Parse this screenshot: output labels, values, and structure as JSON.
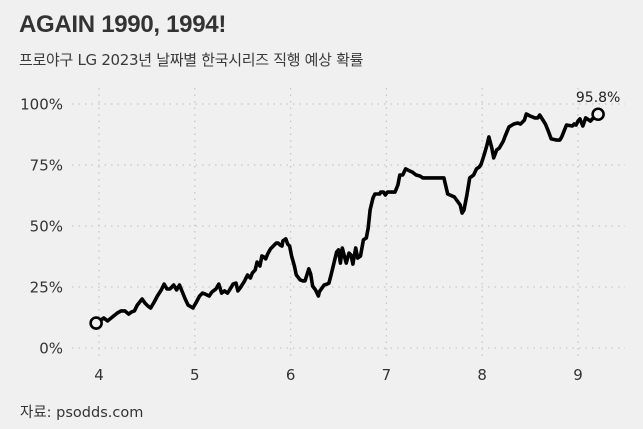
{
  "header": {
    "title": "AGAIN 1990, 1994!",
    "subtitle": "프로야구 LG 2023년 날짜별 한국시리즈 직행 예상 확률"
  },
  "footer": {
    "source": "자료: psodds.com"
  },
  "colors": {
    "background": "#f0f0f0",
    "line": "#000000",
    "grid": "#c8c8c8",
    "text": "#333333"
  },
  "chart_data": {
    "type": "line",
    "title": "AGAIN 1990, 1994!",
    "subtitle": "프로야구 LG 2023년 날짜별 한국시리즈 직행 예상 확률",
    "xlabel": "",
    "ylabel": "",
    "x_unit": "month",
    "xlim": [
      3.73,
      9.5
    ],
    "ylim": [
      -3,
      108
    ],
    "x_ticks": [
      4,
      5,
      6,
      7,
      8,
      9
    ],
    "x_tick_labels": [
      "4",
      "5",
      "6",
      "7",
      "8",
      "9"
    ],
    "y_ticks": [
      0,
      25,
      50,
      75,
      100
    ],
    "y_tick_labels": [
      "0%",
      "25%",
      "50%",
      "75%",
      "100%"
    ],
    "grid": true,
    "grid_style": "dotted",
    "legend": null,
    "annotations": [
      {
        "text": "95.8%",
        "x": 9.21,
        "y": 95.8,
        "position": "above end point"
      }
    ],
    "markers": [
      {
        "x": 3.97,
        "y": 10.2,
        "style": "open-circle",
        "label": "start"
      },
      {
        "x": 9.21,
        "y": 95.8,
        "style": "open-circle",
        "label": "end"
      }
    ],
    "source": "자료: psodds.com",
    "series": [
      {
        "name": "LG 한국시리즈 직행 확률",
        "points": [
          [
            3.97,
            10.2
          ],
          [
            4.02,
            11.5
          ],
          [
            4.05,
            12.3
          ],
          [
            4.09,
            11.1
          ],
          [
            4.14,
            12.7
          ],
          [
            4.19,
            14.3
          ],
          [
            4.23,
            15.2
          ],
          [
            4.27,
            15.2
          ],
          [
            4.31,
            13.9
          ],
          [
            4.34,
            14.8
          ],
          [
            4.37,
            15.2
          ],
          [
            4.4,
            17.6
          ],
          [
            4.45,
            20.1
          ],
          [
            4.48,
            18.4
          ],
          [
            4.51,
            17.2
          ],
          [
            4.54,
            16.4
          ],
          [
            4.57,
            18.4
          ],
          [
            4.61,
            21.3
          ],
          [
            4.65,
            23.8
          ],
          [
            4.68,
            26.2
          ],
          [
            4.71,
            24.2
          ],
          [
            4.74,
            24.2
          ],
          [
            4.78,
            25.8
          ],
          [
            4.81,
            23.8
          ],
          [
            4.84,
            25.8
          ],
          [
            4.87,
            23.0
          ],
          [
            4.9,
            20.1
          ],
          [
            4.93,
            17.6
          ],
          [
            4.98,
            16.4
          ],
          [
            5.01,
            18.4
          ],
          [
            5.05,
            21.3
          ],
          [
            5.08,
            22.5
          ],
          [
            5.11,
            22.1
          ],
          [
            5.15,
            21.3
          ],
          [
            5.18,
            23.0
          ],
          [
            5.22,
            24.2
          ],
          [
            5.25,
            26.2
          ],
          [
            5.28,
            22.5
          ],
          [
            5.31,
            23.4
          ],
          [
            5.34,
            22.5
          ],
          [
            5.37,
            24.2
          ],
          [
            5.4,
            26.2
          ],
          [
            5.43,
            26.6
          ],
          [
            5.45,
            23.4
          ],
          [
            5.48,
            25.0
          ],
          [
            5.52,
            27.5
          ],
          [
            5.55,
            29.9
          ],
          [
            5.58,
            28.7
          ],
          [
            5.6,
            30.7
          ],
          [
            5.63,
            32.0
          ],
          [
            5.65,
            35.2
          ],
          [
            5.68,
            33.6
          ],
          [
            5.7,
            37.7
          ],
          [
            5.72,
            37.3
          ],
          [
            5.74,
            36.5
          ],
          [
            5.76,
            38.5
          ],
          [
            5.79,
            40.6
          ],
          [
            5.83,
            42.2
          ],
          [
            5.85,
            43.0
          ],
          [
            5.87,
            43.0
          ],
          [
            5.89,
            42.2
          ],
          [
            5.91,
            41.8
          ],
          [
            5.92,
            43.9
          ],
          [
            5.95,
            44.7
          ],
          [
            5.97,
            42.6
          ],
          [
            5.99,
            41.8
          ],
          [
            6.01,
            37.7
          ],
          [
            6.04,
            33.6
          ],
          [
            6.06,
            29.9
          ],
          [
            6.1,
            27.9
          ],
          [
            6.13,
            27.5
          ],
          [
            6.15,
            27.5
          ],
          [
            6.17,
            29.9
          ],
          [
            6.19,
            32.4
          ],
          [
            6.21,
            30.3
          ],
          [
            6.23,
            25.4
          ],
          [
            6.26,
            23.8
          ],
          [
            6.29,
            21.3
          ],
          [
            6.3,
            23.0
          ],
          [
            6.35,
            25.8
          ],
          [
            6.38,
            26.2
          ],
          [
            6.4,
            26.6
          ],
          [
            6.42,
            29.5
          ],
          [
            6.45,
            34.4
          ],
          [
            6.48,
            39.3
          ],
          [
            6.5,
            40.2
          ],
          [
            6.52,
            34.8
          ],
          [
            6.54,
            41.0
          ],
          [
            6.58,
            34.8
          ],
          [
            6.61,
            38.9
          ],
          [
            6.63,
            38.1
          ],
          [
            6.65,
            34.4
          ],
          [
            6.68,
            41.0
          ],
          [
            6.7,
            36.9
          ],
          [
            6.73,
            37.7
          ],
          [
            6.76,
            44.3
          ],
          [
            6.79,
            45.1
          ],
          [
            6.81,
            49.2
          ],
          [
            6.83,
            56.6
          ],
          [
            6.86,
            61.5
          ],
          [
            6.88,
            63.1
          ],
          [
            6.93,
            63.1
          ],
          [
            6.94,
            63.9
          ],
          [
            6.97,
            63.9
          ],
          [
            6.99,
            62.7
          ],
          [
            7.01,
            63.9
          ],
          [
            7.09,
            63.9
          ],
          [
            7.12,
            66.8
          ],
          [
            7.14,
            70.9
          ],
          [
            7.17,
            70.9
          ],
          [
            7.2,
            73.4
          ],
          [
            7.22,
            73.0
          ],
          [
            7.27,
            72.1
          ],
          [
            7.31,
            70.9
          ],
          [
            7.35,
            70.5
          ],
          [
            7.38,
            69.7
          ],
          [
            7.53,
            69.7
          ],
          [
            7.6,
            69.7
          ],
          [
            7.64,
            63.1
          ],
          [
            7.71,
            61.9
          ],
          [
            7.77,
            58.6
          ],
          [
            7.79,
            55.3
          ],
          [
            7.81,
            56.6
          ],
          [
            7.84,
            62.7
          ],
          [
            7.87,
            69.7
          ],
          [
            7.91,
            70.9
          ],
          [
            7.94,
            73.4
          ],
          [
            7.97,
            74.2
          ],
          [
            7.99,
            75.4
          ],
          [
            8.02,
            79.1
          ],
          [
            8.05,
            83.2
          ],
          [
            8.07,
            86.5
          ],
          [
            8.1,
            82.0
          ],
          [
            8.12,
            77.9
          ],
          [
            8.15,
            81.1
          ],
          [
            8.18,
            82.0
          ],
          [
            8.22,
            84.8
          ],
          [
            8.24,
            86.9
          ],
          [
            8.28,
            90.6
          ],
          [
            8.33,
            91.8
          ],
          [
            8.37,
            92.2
          ],
          [
            8.4,
            91.8
          ],
          [
            8.42,
            92.6
          ],
          [
            8.44,
            93.4
          ],
          [
            8.46,
            95.9
          ],
          [
            8.5,
            95.1
          ],
          [
            8.55,
            94.3
          ],
          [
            8.58,
            94.3
          ],
          [
            8.6,
            95.5
          ],
          [
            8.66,
            91.8
          ],
          [
            8.69,
            88.9
          ],
          [
            8.72,
            85.7
          ],
          [
            8.78,
            85.2
          ],
          [
            8.81,
            85.2
          ],
          [
            8.83,
            86.5
          ],
          [
            8.88,
            91.4
          ],
          [
            8.94,
            91.0
          ],
          [
            8.96,
            91.8
          ],
          [
            8.98,
            91.4
          ],
          [
            9.0,
            93.0
          ],
          [
            9.02,
            93.9
          ],
          [
            9.05,
            91.0
          ],
          [
            9.08,
            94.3
          ],
          [
            9.13,
            93.0
          ],
          [
            9.15,
            93.9
          ],
          [
            9.19,
            94.7
          ],
          [
            9.21,
            95.8
          ]
        ]
      }
    ]
  }
}
